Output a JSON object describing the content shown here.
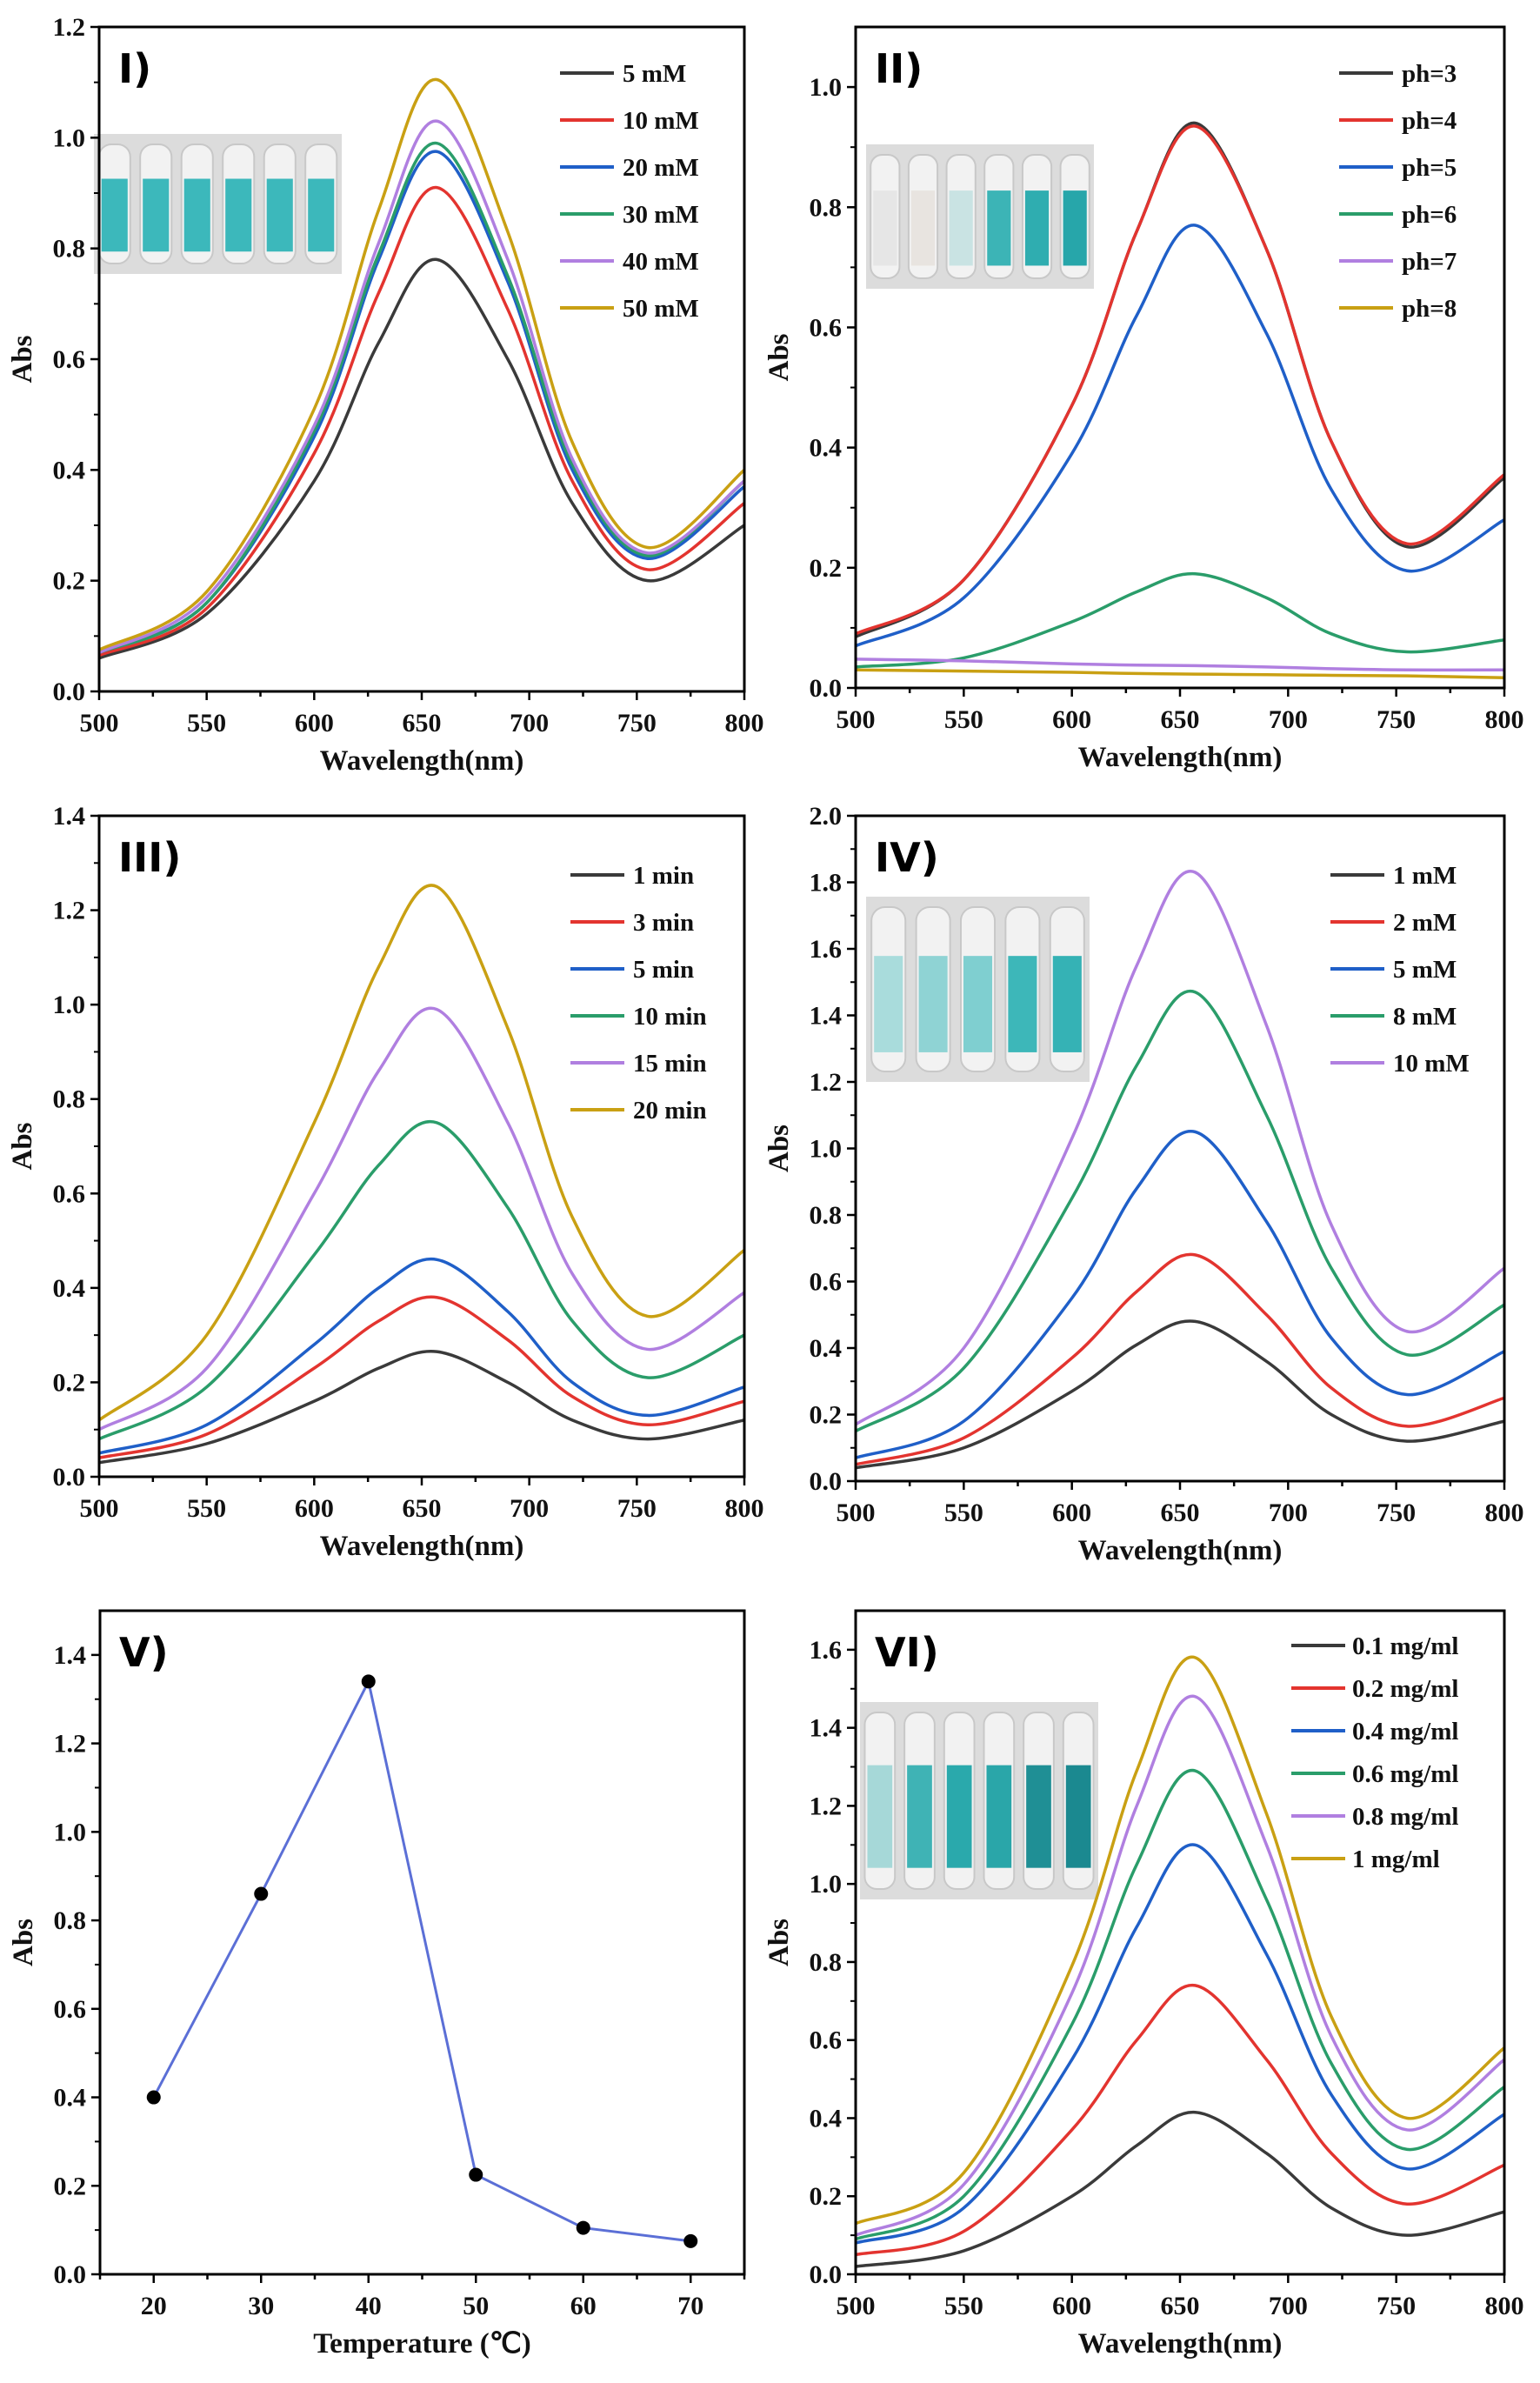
{
  "chart_data": [
    {
      "panel_label": "I)",
      "type": "line",
      "xlabel": "Wavelength(nm)",
      "ylabel": "Abs",
      "xlim": [
        500,
        800
      ],
      "ylim": [
        0,
        1.2
      ],
      "xticks": [
        500,
        550,
        600,
        650,
        700,
        750,
        800
      ],
      "yticks": [
        "0.0",
        "0.2",
        "0.4",
        "0.6",
        "0.8",
        "1.0",
        "1.2"
      ],
      "legend": "top-right",
      "x": [
        500,
        550,
        600,
        630,
        657,
        690,
        720,
        755,
        800
      ],
      "series": [
        {
          "name": "5 mM",
          "color": "#3a3a3a",
          "values": [
            0.06,
            0.14,
            0.38,
            0.63,
            0.78,
            0.6,
            0.34,
            0.2,
            0.3
          ]
        },
        {
          "name": "10 mM",
          "color": "#e3342f",
          "values": [
            0.065,
            0.15,
            0.43,
            0.72,
            0.91,
            0.69,
            0.38,
            0.22,
            0.34
          ]
        },
        {
          "name": "20 mM",
          "color": "#1f5fc8",
          "values": [
            0.07,
            0.16,
            0.46,
            0.78,
            0.975,
            0.74,
            0.4,
            0.24,
            0.37
          ]
        },
        {
          "name": "30 mM",
          "color": "#2a9d6a",
          "values": [
            0.07,
            0.16,
            0.47,
            0.79,
            0.99,
            0.75,
            0.41,
            0.245,
            0.38
          ]
        },
        {
          "name": "40 mM",
          "color": "#b07fe0",
          "values": [
            0.07,
            0.17,
            0.48,
            0.81,
            1.03,
            0.78,
            0.42,
            0.25,
            0.38
          ]
        },
        {
          "name": "50 mM",
          "color": "#c9a013",
          "values": [
            0.075,
            0.18,
            0.51,
            0.87,
            1.105,
            0.83,
            0.45,
            0.26,
            0.4
          ]
        }
      ],
      "inset_vials": [
        "#3cb8bb",
        "#3cb8bb",
        "#3cb8bb",
        "#3cb8bb",
        "#3cb8bb",
        "#3cb8bb"
      ]
    },
    {
      "panel_label": "II)",
      "type": "line",
      "xlabel": "Wavelength(nm)",
      "ylabel": "Abs",
      "xlim": [
        500,
        800
      ],
      "ylim": [
        0,
        1.1
      ],
      "xticks": [
        500,
        550,
        600,
        650,
        700,
        750,
        800
      ],
      "yticks": [
        "0.0",
        "0.2",
        "0.4",
        "0.6",
        "0.8",
        "1.0"
      ],
      "legend": "top-right",
      "x": [
        500,
        550,
        600,
        630,
        657,
        690,
        720,
        755,
        800
      ],
      "series": [
        {
          "name": "ph=3",
          "color": "#3a3a3a",
          "values": [
            0.085,
            0.18,
            0.47,
            0.76,
            0.94,
            0.73,
            0.41,
            0.235,
            0.35
          ]
        },
        {
          "name": "ph=4",
          "color": "#e3342f",
          "values": [
            0.09,
            0.18,
            0.47,
            0.76,
            0.935,
            0.73,
            0.41,
            0.24,
            0.355
          ]
        },
        {
          "name": "ph=5",
          "color": "#1f5fc8",
          "values": [
            0.07,
            0.15,
            0.39,
            0.62,
            0.77,
            0.59,
            0.33,
            0.195,
            0.28
          ]
        },
        {
          "name": "ph=6",
          "color": "#2a9d6a",
          "values": [
            0.035,
            0.05,
            0.11,
            0.16,
            0.19,
            0.15,
            0.09,
            0.06,
            0.08
          ]
        },
        {
          "name": "ph=7",
          "color": "#b07fe0",
          "values": [
            0.048,
            0.045,
            0.04,
            0.038,
            0.037,
            0.035,
            0.032,
            0.03,
            0.03
          ]
        },
        {
          "name": "ph=8",
          "color": "#c9a013",
          "values": [
            0.03,
            0.028,
            0.026,
            0.024,
            0.023,
            0.022,
            0.021,
            0.02,
            0.017
          ]
        }
      ],
      "inset_vials": [
        "#e6e6e6",
        "#e8e4e0",
        "#c9e3e3",
        "#3cb4b6",
        "#2fadb0",
        "#27a6aa"
      ]
    },
    {
      "panel_label": "III)",
      "type": "line",
      "xlabel": "Wavelength(nm)",
      "ylabel": "Abs",
      "xlim": [
        500,
        800
      ],
      "ylim": [
        0,
        1.4
      ],
      "xticks": [
        500,
        550,
        600,
        650,
        700,
        750,
        800
      ],
      "yticks": [
        "0.0",
        "0.2",
        "0.4",
        "0.6",
        "0.8",
        "1.0",
        "1.2",
        "1.4"
      ],
      "legend": "top-right",
      "x": [
        500,
        550,
        600,
        630,
        657,
        690,
        720,
        755,
        800
      ],
      "series": [
        {
          "name": "1 min",
          "color": "#3a3a3a",
          "values": [
            0.03,
            0.07,
            0.16,
            0.23,
            0.265,
            0.2,
            0.12,
            0.08,
            0.12
          ]
        },
        {
          "name": "3 min",
          "color": "#e3342f",
          "values": [
            0.04,
            0.09,
            0.23,
            0.33,
            0.38,
            0.29,
            0.17,
            0.11,
            0.16
          ]
        },
        {
          "name": "5 min",
          "color": "#1f5fc8",
          "values": [
            0.05,
            0.11,
            0.28,
            0.4,
            0.46,
            0.35,
            0.2,
            0.13,
            0.19
          ]
        },
        {
          "name": "10 min",
          "color": "#2a9d6a",
          "values": [
            0.08,
            0.19,
            0.47,
            0.66,
            0.75,
            0.57,
            0.33,
            0.21,
            0.3
          ]
        },
        {
          "name": "15 min",
          "color": "#b07fe0",
          "values": [
            0.1,
            0.23,
            0.6,
            0.86,
            0.99,
            0.75,
            0.43,
            0.27,
            0.39
          ]
        },
        {
          "name": "20 min",
          "color": "#c9a013",
          "values": [
            0.12,
            0.3,
            0.75,
            1.08,
            1.25,
            0.95,
            0.55,
            0.34,
            0.48
          ]
        }
      ]
    },
    {
      "panel_label": "IV)",
      "type": "line",
      "xlabel": "Wavelength(nm)",
      "ylabel": "Abs",
      "xlim": [
        500,
        800
      ],
      "ylim": [
        0,
        2.0
      ],
      "xticks": [
        500,
        550,
        600,
        650,
        700,
        750,
        800
      ],
      "yticks": [
        "0.0",
        "0.2",
        "0.4",
        "0.6",
        "0.8",
        "1.0",
        "1.2",
        "1.4",
        "1.6",
        "1.8",
        "2.0"
      ],
      "legend": "top-right",
      "x": [
        500,
        550,
        600,
        630,
        657,
        690,
        720,
        755,
        800
      ],
      "series": [
        {
          "name": "1 mM",
          "color": "#3a3a3a",
          "values": [
            0.04,
            0.1,
            0.27,
            0.41,
            0.48,
            0.36,
            0.2,
            0.12,
            0.18
          ]
        },
        {
          "name": "2 mM",
          "color": "#e3342f",
          "values": [
            0.05,
            0.13,
            0.37,
            0.57,
            0.68,
            0.5,
            0.28,
            0.165,
            0.25
          ]
        },
        {
          "name": "5 mM",
          "color": "#1f5fc8",
          "values": [
            0.07,
            0.18,
            0.55,
            0.88,
            1.05,
            0.78,
            0.43,
            0.26,
            0.39
          ]
        },
        {
          "name": "8 mM",
          "color": "#2a9d6a",
          "values": [
            0.15,
            0.34,
            0.85,
            1.25,
            1.47,
            1.1,
            0.64,
            0.38,
            0.53
          ]
        },
        {
          "name": "10 mM",
          "color": "#b07fe0",
          "values": [
            0.17,
            0.4,
            1.03,
            1.55,
            1.83,
            1.37,
            0.77,
            0.45,
            0.64
          ]
        }
      ],
      "inset_vials": [
        "#a9dcdc",
        "#8fd3d4",
        "#7fcfd0",
        "#3db7b9",
        "#35b2b5"
      ]
    },
    {
      "panel_label": "V)",
      "type": "line",
      "xlabel": "Temperature (℃)",
      "ylabel": "Abs",
      "xlim": [
        15,
        75
      ],
      "ylim": [
        0,
        1.5
      ],
      "xticks": [
        20,
        30,
        40,
        50,
        60,
        70
      ],
      "yticks": [
        "0.0",
        "0.2",
        "0.4",
        "0.6",
        "0.8",
        "1.0",
        "1.2",
        "1.4"
      ],
      "x": [
        20,
        30,
        40,
        50,
        60,
        70
      ],
      "series": [
        {
          "color": "#5b6fd6",
          "marker_color": "#000000",
          "values": [
            0.4,
            0.86,
            1.34,
            0.225,
            0.105,
            0.075
          ]
        }
      ]
    },
    {
      "panel_label": "VI)",
      "type": "line",
      "xlabel": "Wavelength(nm)",
      "ylabel": "Abs",
      "xlim": [
        500,
        800
      ],
      "ylim": [
        0,
        1.7
      ],
      "xticks": [
        500,
        550,
        600,
        650,
        700,
        750,
        800
      ],
      "yticks": [
        "0.0",
        "0.2",
        "0.4",
        "0.6",
        "0.8",
        "1.0",
        "1.2",
        "1.4",
        "1.6"
      ],
      "legend": "top-right",
      "x": [
        500,
        550,
        600,
        630,
        657,
        690,
        720,
        755,
        800
      ],
      "series": [
        {
          "name": "0.1 mg/ml",
          "color": "#3a3a3a",
          "values": [
            0.02,
            0.06,
            0.2,
            0.33,
            0.415,
            0.31,
            0.17,
            0.1,
            0.16
          ]
        },
        {
          "name": "0.2 mg/ml",
          "color": "#e3342f",
          "values": [
            0.05,
            0.11,
            0.37,
            0.6,
            0.74,
            0.55,
            0.31,
            0.18,
            0.28
          ]
        },
        {
          "name": "0.4 mg/ml",
          "color": "#1f5fc8",
          "values": [
            0.08,
            0.17,
            0.55,
            0.89,
            1.1,
            0.82,
            0.46,
            0.27,
            0.41
          ]
        },
        {
          "name": "0.6 mg/ml",
          "color": "#2a9d6a",
          "values": [
            0.09,
            0.2,
            0.64,
            1.05,
            1.29,
            0.96,
            0.54,
            0.32,
            0.48
          ]
        },
        {
          "name": "0.8 mg/ml",
          "color": "#b07fe0",
          "values": [
            0.1,
            0.23,
            0.72,
            1.2,
            1.48,
            1.1,
            0.61,
            0.37,
            0.55
          ]
        },
        {
          "name": "1 mg/ml",
          "color": "#c9a013",
          "values": [
            0.13,
            0.26,
            0.79,
            1.29,
            1.58,
            1.18,
            0.66,
            0.4,
            0.58
          ]
        }
      ],
      "inset_vials": [
        "#a6d8d8",
        "#3fb3b5",
        "#2aa9ac",
        "#2aa6a9",
        "#1f8f95",
        "#1b8990"
      ]
    }
  ]
}
